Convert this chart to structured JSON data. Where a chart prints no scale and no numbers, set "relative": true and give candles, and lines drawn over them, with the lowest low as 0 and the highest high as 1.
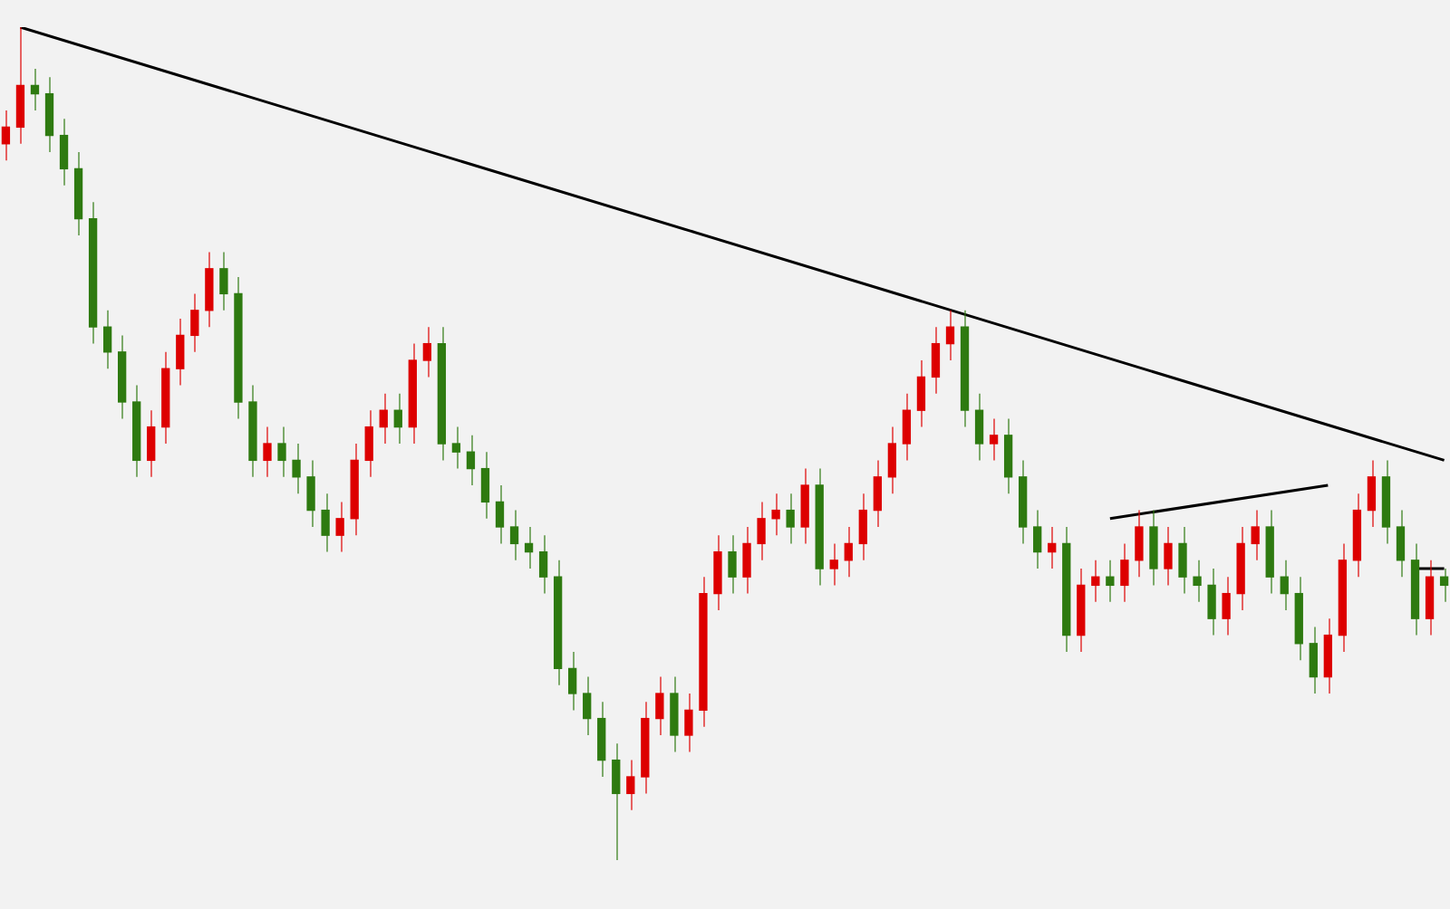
{
  "chart_data": {
    "type": "candlestick",
    "relative": true,
    "categories": [
      null,
      null,
      null,
      null,
      null,
      null,
      null,
      null,
      null,
      null,
      null,
      null,
      null,
      null,
      null,
      null,
      null,
      null,
      null,
      null,
      null,
      null,
      null,
      null,
      null,
      null,
      null,
      null,
      null,
      null,
      null,
      null,
      null,
      null,
      null,
      null,
      null,
      null,
      null,
      null,
      null,
      null,
      null,
      null,
      null,
      null,
      null,
      null,
      null,
      null,
      null,
      null,
      null,
      null,
      null,
      null,
      null,
      null,
      null,
      null,
      null,
      null,
      null,
      null,
      null,
      null,
      null,
      null,
      null,
      null,
      null,
      null,
      null,
      null,
      null,
      null,
      null,
      null,
      null,
      null,
      null,
      null,
      null,
      null,
      null,
      null,
      null,
      null,
      null,
      null,
      null,
      null,
      null,
      null,
      null,
      null,
      null,
      null,
      null,
      null
    ],
    "ohlc": [
      [
        0.86,
        0.9,
        0.84,
        0.88
      ],
      [
        0.88,
        1.0,
        0.86,
        0.93
      ],
      [
        0.93,
        0.95,
        0.9,
        0.92
      ],
      [
        0.92,
        0.94,
        0.85,
        0.87
      ],
      [
        0.87,
        0.89,
        0.81,
        0.83
      ],
      [
        0.83,
        0.85,
        0.75,
        0.77
      ],
      [
        0.77,
        0.79,
        0.62,
        0.64
      ],
      [
        0.64,
        0.66,
        0.59,
        0.61
      ],
      [
        0.61,
        0.63,
        0.53,
        0.55
      ],
      [
        0.55,
        0.57,
        0.46,
        0.48
      ],
      [
        0.48,
        0.54,
        0.46,
        0.52
      ],
      [
        0.52,
        0.61,
        0.5,
        0.59
      ],
      [
        0.59,
        0.65,
        0.57,
        0.63
      ],
      [
        0.63,
        0.68,
        0.61,
        0.66
      ],
      [
        0.66,
        0.73,
        0.64,
        0.71
      ],
      [
        0.71,
        0.73,
        0.66,
        0.68
      ],
      [
        0.68,
        0.7,
        0.53,
        0.55
      ],
      [
        0.55,
        0.57,
        0.46,
        0.48
      ],
      [
        0.48,
        0.52,
        0.46,
        0.5
      ],
      [
        0.5,
        0.52,
        0.46,
        0.48
      ],
      [
        0.48,
        0.5,
        0.44,
        0.46
      ],
      [
        0.46,
        0.48,
        0.4,
        0.42
      ],
      [
        0.42,
        0.44,
        0.37,
        0.39
      ],
      [
        0.39,
        0.43,
        0.37,
        0.41
      ],
      [
        0.41,
        0.5,
        0.39,
        0.48
      ],
      [
        0.48,
        0.54,
        0.46,
        0.52
      ],
      [
        0.52,
        0.56,
        0.5,
        0.54
      ],
      [
        0.54,
        0.56,
        0.5,
        0.52
      ],
      [
        0.52,
        0.62,
        0.5,
        0.6
      ],
      [
        0.6,
        0.64,
        0.58,
        0.62
      ],
      [
        0.62,
        0.64,
        0.48,
        0.5
      ],
      [
        0.5,
        0.52,
        0.47,
        0.49
      ],
      [
        0.49,
        0.51,
        0.45,
        0.47
      ],
      [
        0.47,
        0.49,
        0.41,
        0.43
      ],
      [
        0.43,
        0.45,
        0.38,
        0.4
      ],
      [
        0.4,
        0.42,
        0.36,
        0.38
      ],
      [
        0.38,
        0.4,
        0.35,
        0.37
      ],
      [
        0.37,
        0.39,
        0.32,
        0.34
      ],
      [
        0.34,
        0.36,
        0.21,
        0.23
      ],
      [
        0.23,
        0.25,
        0.18,
        0.2
      ],
      [
        0.2,
        0.22,
        0.15,
        0.17
      ],
      [
        0.17,
        0.19,
        0.1,
        0.12
      ],
      [
        0.12,
        0.14,
        0.0,
        0.08
      ],
      [
        0.08,
        0.12,
        0.06,
        0.1
      ],
      [
        0.1,
        0.19,
        0.08,
        0.17
      ],
      [
        0.17,
        0.22,
        0.15,
        0.2
      ],
      [
        0.2,
        0.22,
        0.13,
        0.15
      ],
      [
        0.15,
        0.2,
        0.13,
        0.18
      ],
      [
        0.18,
        0.34,
        0.16,
        0.32
      ],
      [
        0.32,
        0.39,
        0.3,
        0.37
      ],
      [
        0.37,
        0.39,
        0.32,
        0.34
      ],
      [
        0.34,
        0.4,
        0.32,
        0.38
      ],
      [
        0.38,
        0.43,
        0.36,
        0.41
      ],
      [
        0.41,
        0.44,
        0.39,
        0.42
      ],
      [
        0.42,
        0.44,
        0.38,
        0.4
      ],
      [
        0.4,
        0.47,
        0.38,
        0.45
      ],
      [
        0.45,
        0.47,
        0.33,
        0.35
      ],
      [
        0.35,
        0.38,
        0.33,
        0.36
      ],
      [
        0.36,
        0.4,
        0.34,
        0.38
      ],
      [
        0.38,
        0.44,
        0.36,
        0.42
      ],
      [
        0.42,
        0.48,
        0.4,
        0.46
      ],
      [
        0.46,
        0.52,
        0.44,
        0.5
      ],
      [
        0.5,
        0.56,
        0.48,
        0.54
      ],
      [
        0.54,
        0.6,
        0.52,
        0.58
      ],
      [
        0.58,
        0.64,
        0.56,
        0.62
      ],
      [
        0.62,
        0.66,
        0.6,
        0.64
      ],
      [
        0.64,
        0.66,
        0.52,
        0.54
      ],
      [
        0.54,
        0.56,
        0.48,
        0.5
      ],
      [
        0.5,
        0.53,
        0.48,
        0.51
      ],
      [
        0.51,
        0.53,
        0.44,
        0.46
      ],
      [
        0.46,
        0.48,
        0.38,
        0.4
      ],
      [
        0.4,
        0.42,
        0.35,
        0.37
      ],
      [
        0.37,
        0.4,
        0.35,
        0.38
      ],
      [
        0.38,
        0.4,
        0.25,
        0.27
      ],
      [
        0.27,
        0.35,
        0.25,
        0.33
      ],
      [
        0.33,
        0.36,
        0.31,
        0.34
      ],
      [
        0.34,
        0.36,
        0.31,
        0.33
      ],
      [
        0.33,
        0.38,
        0.31,
        0.36
      ],
      [
        0.36,
        0.42,
        0.34,
        0.4
      ],
      [
        0.4,
        0.42,
        0.33,
        0.35
      ],
      [
        0.35,
        0.4,
        0.33,
        0.38
      ],
      [
        0.38,
        0.4,
        0.32,
        0.34
      ],
      [
        0.34,
        0.36,
        0.31,
        0.33
      ],
      [
        0.33,
        0.35,
        0.27,
        0.29
      ],
      [
        0.29,
        0.34,
        0.27,
        0.32
      ],
      [
        0.32,
        0.4,
        0.3,
        0.38
      ],
      [
        0.38,
        0.42,
        0.36,
        0.4
      ],
      [
        0.4,
        0.42,
        0.32,
        0.34
      ],
      [
        0.34,
        0.36,
        0.3,
        0.32
      ],
      [
        0.32,
        0.34,
        0.24,
        0.26
      ],
      [
        0.26,
        0.28,
        0.2,
        0.22
      ],
      [
        0.22,
        0.29,
        0.2,
        0.27
      ],
      [
        0.27,
        0.38,
        0.25,
        0.36
      ],
      [
        0.36,
        0.44,
        0.34,
        0.42
      ],
      [
        0.42,
        0.48,
        0.4,
        0.46
      ],
      [
        0.46,
        0.48,
        0.38,
        0.4
      ],
      [
        0.4,
        0.42,
        0.34,
        0.36
      ],
      [
        0.36,
        0.38,
        0.27,
        0.29
      ],
      [
        0.29,
        0.36,
        0.27,
        0.34
      ],
      [
        0.34,
        0.35,
        0.31,
        0.33
      ]
    ],
    "colors": [
      "#dd0000",
      "#dd0000",
      "#2e7a10",
      "#2e7a10",
      "#2e7a10",
      "#2e7a10",
      "#2e7a10",
      "#2e7a10",
      "#2e7a10",
      "#2e7a10",
      "#dd0000",
      "#dd0000",
      "#dd0000",
      "#dd0000",
      "#dd0000",
      "#2e7a10",
      "#2e7a10",
      "#2e7a10",
      "#dd0000",
      "#2e7a10",
      "#2e7a10",
      "#2e7a10",
      "#2e7a10",
      "#dd0000",
      "#dd0000",
      "#dd0000",
      "#dd0000",
      "#2e7a10",
      "#dd0000",
      "#dd0000",
      "#2e7a10",
      "#2e7a10",
      "#2e7a10",
      "#2e7a10",
      "#2e7a10",
      "#2e7a10",
      "#2e7a10",
      "#2e7a10",
      "#2e7a10",
      "#2e7a10",
      "#2e7a10",
      "#2e7a10",
      "#2e7a10",
      "#dd0000",
      "#dd0000",
      "#dd0000",
      "#2e7a10",
      "#dd0000",
      "#dd0000",
      "#dd0000",
      "#2e7a10",
      "#dd0000",
      "#dd0000",
      "#dd0000",
      "#2e7a10",
      "#dd0000",
      "#2e7a10",
      "#dd0000",
      "#dd0000",
      "#dd0000",
      "#dd0000",
      "#dd0000",
      "#dd0000",
      "#dd0000",
      "#dd0000",
      "#dd0000",
      "#2e7a10",
      "#2e7a10",
      "#dd0000",
      "#2e7a10",
      "#2e7a10",
      "#2e7a10",
      "#dd0000",
      "#2e7a10",
      "#dd0000",
      "#dd0000",
      "#2e7a10",
      "#dd0000",
      "#dd0000",
      "#2e7a10",
      "#dd0000",
      "#2e7a10",
      "#2e7a10",
      "#2e7a10",
      "#dd0000",
      "#dd0000",
      "#dd0000",
      "#2e7a10",
      "#2e7a10",
      "#2e7a10",
      "#2e7a10",
      "#dd0000",
      "#dd0000",
      "#dd0000",
      "#dd0000",
      "#2e7a10",
      "#2e7a10",
      "#2e7a10",
      "#dd0000",
      "#2e7a10"
    ],
    "series": [
      {
        "type": "line",
        "color": "#000000",
        "values": [
          null,
          1.0,
          null,
          null,
          null,
          null,
          null,
          null,
          null,
          null,
          null,
          null,
          null,
          null,
          null,
          null,
          null,
          null,
          null,
          null,
          null,
          null,
          null,
          null,
          null,
          null,
          null,
          null,
          null,
          null,
          null,
          null,
          null,
          null,
          null,
          null,
          null,
          null,
          null,
          null,
          null,
          null,
          null,
          null,
          null,
          null,
          null,
          null,
          null,
          null,
          null,
          null,
          null,
          null,
          null,
          null,
          null,
          null,
          null,
          null,
          null,
          null,
          null,
          null,
          null,
          null,
          null,
          null,
          null,
          null,
          null,
          null,
          null,
          null,
          null,
          null,
          null,
          null,
          null,
          null,
          null,
          null,
          null,
          null,
          null,
          null,
          null,
          null,
          null,
          null,
          null,
          null,
          null,
          null,
          null,
          null,
          null,
          null,
          null,
          0.48
        ]
      },
      {
        "type": "line",
        "color": "#000000",
        "values": [
          null,
          null,
          null,
          null,
          null,
          null,
          null,
          null,
          null,
          null,
          null,
          null,
          null,
          null,
          null,
          null,
          null,
          null,
          null,
          null,
          null,
          null,
          null,
          null,
          null,
          null,
          null,
          null,
          null,
          null,
          null,
          null,
          null,
          null,
          null,
          null,
          null,
          null,
          null,
          null,
          null,
          null,
          null,
          null,
          null,
          null,
          null,
          null,
          null,
          null,
          null,
          null,
          null,
          null,
          null,
          null,
          null,
          null,
          null,
          null,
          null,
          null,
          null,
          null,
          null,
          null,
          null,
          null,
          null,
          null,
          null,
          null,
          null,
          null,
          null,
          null,
          0.41,
          null,
          null,
          null,
          null,
          null,
          null,
          null,
          null,
          null,
          null,
          null,
          null,
          null,
          null,
          0.45,
          null,
          null,
          null,
          null,
          null,
          null,
          null,
          null
        ]
      },
      {
        "type": "line",
        "color": "#000000",
        "values": [
          null,
          null,
          null,
          null,
          null,
          null,
          null,
          null,
          null,
          null,
          null,
          null,
          null,
          null,
          null,
          null,
          null,
          null,
          null,
          null,
          null,
          null,
          null,
          null,
          null,
          null,
          null,
          null,
          null,
          null,
          null,
          null,
          null,
          null,
          null,
          null,
          null,
          null,
          null,
          null,
          null,
          null,
          null,
          null,
          null,
          null,
          null,
          null,
          null,
          null,
          null,
          null,
          null,
          null,
          null,
          null,
          null,
          null,
          null,
          null,
          null,
          null,
          null,
          null,
          null,
          null,
          null,
          null,
          null,
          null,
          null,
          null,
          null,
          null,
          null,
          null,
          null,
          null,
          null,
          null,
          null,
          null,
          null,
          null,
          null,
          null,
          null,
          null,
          null,
          null,
          null,
          null,
          null,
          null,
          null,
          null,
          null,
          0.35,
          null,
          0.35
        ]
      }
    ]
  }
}
